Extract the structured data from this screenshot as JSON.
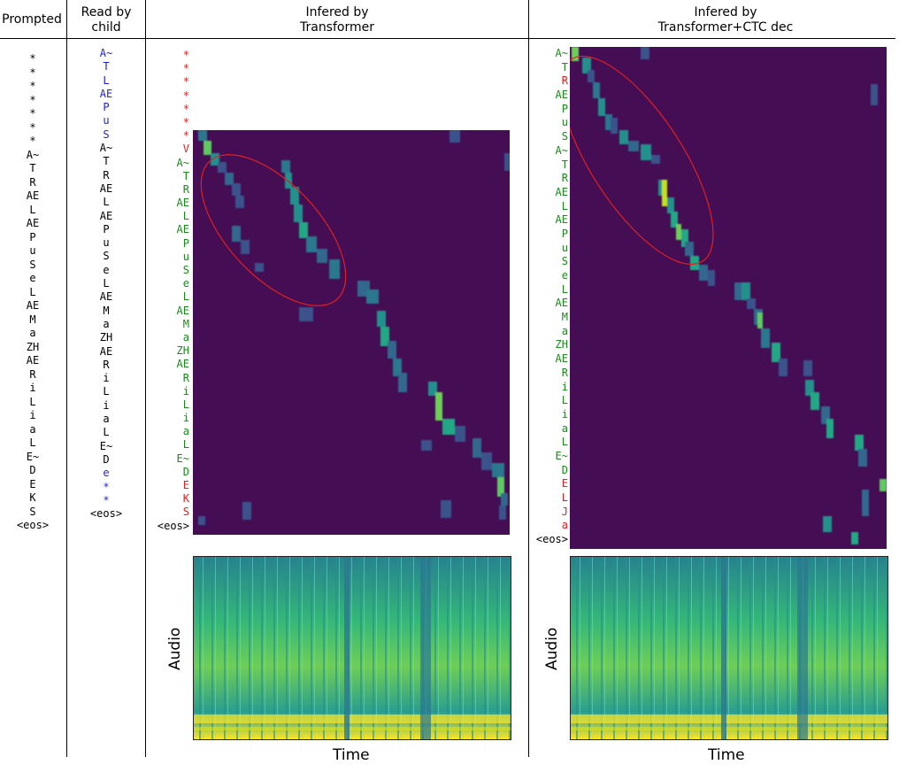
{
  "headers": {
    "prompted": "Prompted",
    "read_by_child": [
      "Read by",
      "child"
    ],
    "transformer": [
      "Infered by",
      "Transformer"
    ],
    "transformer_ctc": [
      "Infered by",
      "Transformer+CTC dec"
    ]
  },
  "prompted_tokens": [
    "*",
    "*",
    "*",
    "*",
    "*",
    "*",
    "*",
    "A~",
    "T",
    "R",
    "AE",
    "L",
    "AE",
    "P",
    "u",
    "S",
    "e",
    "L",
    "AE",
    "M",
    "a",
    "ZH",
    "AE",
    "R",
    "i",
    "L",
    "i",
    "a",
    "L",
    "E~",
    "D",
    "E",
    "K",
    "S",
    "<eos>"
  ],
  "child_tokens": [
    {
      "t": "A~",
      "c": "blue"
    },
    {
      "t": "T",
      "c": "blue"
    },
    {
      "t": "L",
      "c": "blue"
    },
    {
      "t": "AE",
      "c": "blue"
    },
    {
      "t": "P",
      "c": "blue"
    },
    {
      "t": "u",
      "c": "blue"
    },
    {
      "t": "S",
      "c": "blue"
    },
    {
      "t": "A~",
      "c": "black"
    },
    {
      "t": "T",
      "c": "black"
    },
    {
      "t": "R",
      "c": "black"
    },
    {
      "t": "AE",
      "c": "black"
    },
    {
      "t": "L",
      "c": "black"
    },
    {
      "t": "AE",
      "c": "black"
    },
    {
      "t": "P",
      "c": "black"
    },
    {
      "t": "u",
      "c": "black"
    },
    {
      "t": "S",
      "c": "black"
    },
    {
      "t": "e",
      "c": "black"
    },
    {
      "t": "L",
      "c": "black"
    },
    {
      "t": "AE",
      "c": "black"
    },
    {
      "t": "M",
      "c": "black"
    },
    {
      "t": "a",
      "c": "black"
    },
    {
      "t": "ZH",
      "c": "black"
    },
    {
      "t": "AE",
      "c": "black"
    },
    {
      "t": "R",
      "c": "black"
    },
    {
      "t": "i",
      "c": "black"
    },
    {
      "t": "L",
      "c": "black"
    },
    {
      "t": "i",
      "c": "black"
    },
    {
      "t": "a",
      "c": "black"
    },
    {
      "t": "L",
      "c": "black"
    },
    {
      "t": "E~",
      "c": "black"
    },
    {
      "t": "D",
      "c": "black"
    },
    {
      "t": "e",
      "c": "blue"
    },
    {
      "t": "*",
      "c": "blue"
    },
    {
      "t": "*",
      "c": "blue"
    },
    {
      "t": "<eos>",
      "c": "black"
    }
  ],
  "transformer_tokens": [
    {
      "t": "*",
      "c": "red"
    },
    {
      "t": "*",
      "c": "red"
    },
    {
      "t": "*",
      "c": "red"
    },
    {
      "t": "*",
      "c": "red"
    },
    {
      "t": "*",
      "c": "red"
    },
    {
      "t": "*",
      "c": "red"
    },
    {
      "t": "*",
      "c": "red"
    },
    {
      "t": "V",
      "c": "red"
    },
    {
      "t": "A~",
      "c": "green"
    },
    {
      "t": "T",
      "c": "green"
    },
    {
      "t": "R",
      "c": "green"
    },
    {
      "t": "AE",
      "c": "green"
    },
    {
      "t": "L",
      "c": "green"
    },
    {
      "t": "AE",
      "c": "green"
    },
    {
      "t": "P",
      "c": "green"
    },
    {
      "t": "u",
      "c": "green"
    },
    {
      "t": "S",
      "c": "green"
    },
    {
      "t": "e",
      "c": "green"
    },
    {
      "t": "L",
      "c": "green"
    },
    {
      "t": "AE",
      "c": "green"
    },
    {
      "t": "M",
      "c": "green"
    },
    {
      "t": "a",
      "c": "green"
    },
    {
      "t": "ZH",
      "c": "green"
    },
    {
      "t": "AE",
      "c": "green"
    },
    {
      "t": "R",
      "c": "green"
    },
    {
      "t": "i",
      "c": "green"
    },
    {
      "t": "L",
      "c": "green"
    },
    {
      "t": "i",
      "c": "green"
    },
    {
      "t": "a",
      "c": "green"
    },
    {
      "t": "L",
      "c": "green"
    },
    {
      "t": "E~",
      "c": "green"
    },
    {
      "t": "D",
      "c": "green"
    },
    {
      "t": "E",
      "c": "red"
    },
    {
      "t": "K",
      "c": "red"
    },
    {
      "t": "S",
      "c": "red"
    },
    {
      "t": "<eos>",
      "c": "black"
    }
  ],
  "ctc_tokens": [
    {
      "t": "A~",
      "c": "green"
    },
    {
      "t": "T",
      "c": "green"
    },
    {
      "t": "R",
      "c": "red"
    },
    {
      "t": "AE",
      "c": "green"
    },
    {
      "t": "P",
      "c": "green"
    },
    {
      "t": "u",
      "c": "green"
    },
    {
      "t": "S",
      "c": "green"
    },
    {
      "t": "A~",
      "c": "green"
    },
    {
      "t": "T",
      "c": "green"
    },
    {
      "t": "R",
      "c": "green"
    },
    {
      "t": "AE",
      "c": "green"
    },
    {
      "t": "L",
      "c": "green"
    },
    {
      "t": "AE",
      "c": "green"
    },
    {
      "t": "P",
      "c": "green"
    },
    {
      "t": "u",
      "c": "green"
    },
    {
      "t": "S",
      "c": "green"
    },
    {
      "t": "e",
      "c": "green"
    },
    {
      "t": "L",
      "c": "green"
    },
    {
      "t": "AE",
      "c": "green"
    },
    {
      "t": "M",
      "c": "green"
    },
    {
      "t": "a",
      "c": "green"
    },
    {
      "t": "ZH",
      "c": "green"
    },
    {
      "t": "AE",
      "c": "green"
    },
    {
      "t": "R",
      "c": "green"
    },
    {
      "t": "i",
      "c": "green"
    },
    {
      "t": "L",
      "c": "green"
    },
    {
      "t": "i",
      "c": "green"
    },
    {
      "t": "a",
      "c": "green"
    },
    {
      "t": "L",
      "c": "green"
    },
    {
      "t": "E~",
      "c": "green"
    },
    {
      "t": "D",
      "c": "green"
    },
    {
      "t": "E",
      "c": "red"
    },
    {
      "t": "L",
      "c": "red"
    },
    {
      "t": "J",
      "c": "red"
    },
    {
      "t": "a",
      "c": "red"
    },
    {
      "t": "<eos>",
      "c": "black"
    }
  ],
  "axis": {
    "time": "Time",
    "audio": "Audio"
  },
  "colors": {
    "black": "#000000",
    "blue": "#1f1fd6",
    "green": "#1a8a1a",
    "red": "#e02020",
    "attention_bg": "#440d54",
    "highlight_ellipse": "#e02020"
  }
}
